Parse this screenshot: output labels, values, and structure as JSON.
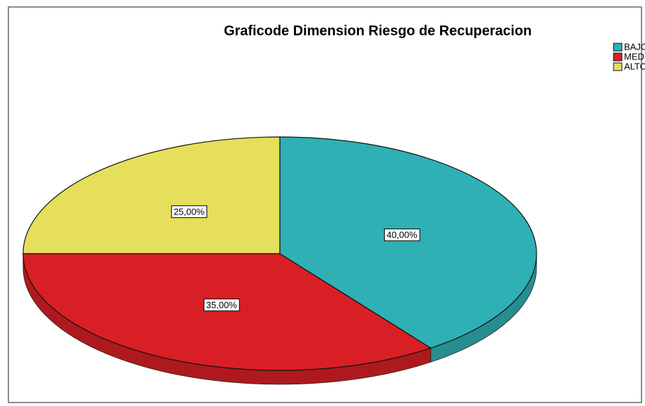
{
  "chart_data": {
    "type": "pie",
    "title": "Graficode Dimension Riesgo de Recuperacion",
    "categories": [
      "BAJO",
      "MEDIO",
      "ALTO"
    ],
    "values": [
      40,
      35,
      25
    ],
    "value_labels": [
      "40,00%",
      "35,00%",
      "25,00%"
    ],
    "colors": [
      "#2fb0b4",
      "#d91f26",
      "#e5df5b"
    ],
    "legend": "top-right"
  }
}
